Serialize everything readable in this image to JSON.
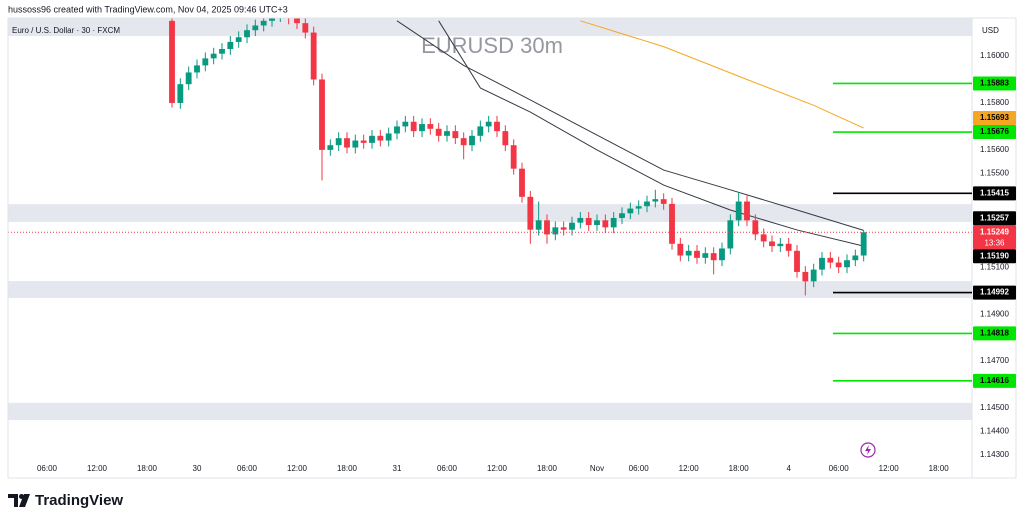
{
  "chart_data": {
    "type": "candlestick",
    "title": "EURUSD 30m",
    "credit": "hussoss96 created with TradingView.com, Nov 04, 2025 09:46 UTC+3",
    "symbol": "Euro / U.S. Dollar · 30 · FXCM",
    "currency": "USD",
    "brand": "TradingView",
    "up_color": "#089981",
    "down_color": "#f23645",
    "xlim": [
      1.32,
      117.0
    ],
    "ylim": [
      1.14202,
      1.16162
    ],
    "xticks": [
      {
        "value": 6,
        "label": "06:00"
      },
      {
        "value": 12,
        "label": "12:00"
      },
      {
        "value": 18,
        "label": "18:00"
      },
      {
        "value": 24,
        "label": "30"
      },
      {
        "value": 30,
        "label": "06:00"
      },
      {
        "value": 36,
        "label": "12:00"
      },
      {
        "value": 42,
        "label": "18:00"
      },
      {
        "value": 48,
        "label": "31"
      },
      {
        "value": 54,
        "label": "06:00"
      },
      {
        "value": 60,
        "label": "12:00"
      },
      {
        "value": 66,
        "label": "18:00"
      },
      {
        "value": 72,
        "label": "Nov"
      },
      {
        "value": 77,
        "label": "06:00"
      },
      {
        "value": 83,
        "label": "12:00"
      },
      {
        "value": 89,
        "label": "18:00"
      },
      {
        "value": 95,
        "label": "4"
      },
      {
        "value": 101,
        "label": "06:00"
      },
      {
        "value": 107,
        "label": "12:00"
      },
      {
        "value": 113,
        "label": "18:00"
      }
    ],
    "yticks": [
      {
        "value": 1.16,
        "label": "1.16000"
      },
      {
        "value": 1.158,
        "label": "1.15800"
      },
      {
        "value": 1.156,
        "label": "1.15600"
      },
      {
        "value": 1.155,
        "label": "1.15500"
      },
      {
        "value": 1.151,
        "label": "1.15100"
      },
      {
        "value": 1.149,
        "label": "1.14900"
      },
      {
        "value": 1.147,
        "label": "1.14700"
      },
      {
        "value": 1.145,
        "label": "1.14500"
      },
      {
        "value": 1.144,
        "label": "1.14400"
      },
      {
        "value": 1.143,
        "label": "1.14300"
      }
    ],
    "x": [
      21,
      22,
      23,
      24,
      25,
      26,
      27,
      28,
      29,
      30,
      31,
      32,
      33,
      34,
      35,
      36,
      37,
      38,
      39,
      40,
      41,
      42,
      43,
      44,
      45,
      46,
      47,
      48,
      49,
      50,
      51,
      52,
      53,
      54,
      55,
      56,
      57,
      58,
      59,
      60,
      61,
      62,
      63,
      64,
      65,
      66,
      67,
      68,
      69,
      70,
      71,
      72,
      73,
      74,
      75,
      76,
      77,
      78,
      79,
      80,
      81,
      82,
      83,
      84,
      85,
      86,
      87,
      88,
      89,
      90,
      91,
      92,
      93,
      94,
      95,
      96,
      97,
      98,
      99,
      100,
      101,
      102,
      103,
      104
    ],
    "open": [
      1.1615,
      1.158,
      1.1588,
      1.1593,
      1.1596,
      1.1599,
      1.1601,
      1.1603,
      1.1606,
      1.1608,
      1.1611,
      1.1613,
      1.1615,
      1.1617,
      1.1618,
      1.1616,
      1.1614,
      1.161,
      1.159,
      1.156,
      1.1562,
      1.1565,
      1.1561,
      1.1564,
      1.1563,
      1.1566,
      1.1564,
      1.1567,
      1.157,
      1.1572,
      1.1568,
      1.1571,
      1.1569,
      1.1566,
      1.1568,
      1.1565,
      1.1562,
      1.1566,
      1.157,
      1.1572,
      1.1568,
      1.1562,
      1.1552,
      1.154,
      1.1526,
      1.153,
      1.1524,
      1.1527,
      1.1526,
      1.1529,
      1.1531,
      1.1528,
      1.153,
      1.1527,
      1.1531,
      1.1533,
      1.1535,
      1.1536,
      1.1538,
      1.1539,
      1.1537,
      1.152,
      1.1515,
      1.1517,
      1.1514,
      1.1516,
      1.1513,
      1.1518,
      1.153,
      1.1538,
      1.153,
      1.1524,
      1.1521,
      1.1519,
      1.152,
      1.1517,
      1.1508,
      1.1504,
      1.1509,
      1.1514,
      1.1512,
      1.151,
      1.1513,
      1.1515
    ],
    "high": [
      1.162,
      1.15905,
      1.15955,
      1.15985,
      1.16015,
      1.16035,
      1.16055,
      1.16085,
      1.16105,
      1.16135,
      1.16155,
      1.16175,
      1.16195,
      1.16205,
      1.16205,
      1.16185,
      1.16165,
      1.16125,
      1.15925,
      1.15645,
      1.15675,
      1.15675,
      1.15665,
      1.15665,
      1.15685,
      1.15685,
      1.15695,
      1.15725,
      1.15745,
      1.15745,
      1.15735,
      1.15735,
      1.15715,
      1.15705,
      1.15705,
      1.15675,
      1.15685,
      1.15725,
      1.15745,
      1.15745,
      1.15705,
      1.15645,
      1.15545,
      1.15425,
      1.1538,
      1.15325,
      1.15295,
      1.15295,
      1.15315,
      1.15335,
      1.15335,
      1.15325,
      1.15325,
      1.15335,
      1.15355,
      1.15375,
      1.15385,
      1.15405,
      1.1543,
      1.15415,
      1.15395,
      1.15225,
      1.15195,
      1.15195,
      1.15185,
      1.15185,
      1.15205,
      1.15325,
      1.1542,
      1.15405,
      1.15325,
      1.15265,
      1.15235,
      1.15225,
      1.15225,
      1.15195,
      1.15105,
      1.15115,
      1.15165,
      1.15165,
      1.15145,
      1.15155,
      1.15175,
      1.15257
    ],
    "low": [
      1.1578,
      1.15775,
      1.15855,
      1.15905,
      1.15935,
      1.15965,
      1.15985,
      1.16005,
      1.16035,
      1.16055,
      1.16085,
      1.16105,
      1.16125,
      1.16145,
      1.16135,
      1.16115,
      1.16075,
      1.15875,
      1.1547,
      1.15575,
      1.15595,
      1.15585,
      1.15585,
      1.15605,
      1.15605,
      1.15615,
      1.15615,
      1.15645,
      1.15675,
      1.15655,
      1.15655,
      1.15665,
      1.15635,
      1.15635,
      1.15625,
      1.1556,
      1.15595,
      1.15635,
      1.15675,
      1.15655,
      1.15595,
      1.15495,
      1.15375,
      1.152,
      1.15235,
      1.152,
      1.15215,
      1.15235,
      1.15235,
      1.15265,
      1.15255,
      1.15255,
      1.15245,
      1.15245,
      1.15285,
      1.15305,
      1.15325,
      1.15335,
      1.15355,
      1.15345,
      1.15175,
      1.15125,
      1.15125,
      1.15115,
      1.15115,
      1.1507,
      1.15105,
      1.15155,
      1.15275,
      1.15275,
      1.15215,
      1.15185,
      1.15165,
      1.15165,
      1.15145,
      1.15055,
      1.1498,
      1.15015,
      1.15065,
      1.15095,
      1.15075,
      1.15075,
      1.15105,
      1.15125
    ],
    "close": [
      1.158,
      1.1588,
      1.1593,
      1.1596,
      1.1599,
      1.1601,
      1.1603,
      1.1606,
      1.1608,
      1.1611,
      1.1613,
      1.1615,
      1.1617,
      1.1618,
      1.1616,
      1.1614,
      1.161,
      1.159,
      1.156,
      1.1562,
      1.1565,
      1.1561,
      1.1564,
      1.1563,
      1.1566,
      1.1564,
      1.1567,
      1.157,
      1.1572,
      1.1568,
      1.1571,
      1.1569,
      1.1566,
      1.1568,
      1.1565,
      1.1562,
      1.1566,
      1.157,
      1.1572,
      1.1568,
      1.1562,
      1.1552,
      1.154,
      1.1526,
      1.153,
      1.1524,
      1.1527,
      1.1526,
      1.1529,
      1.1531,
      1.1528,
      1.153,
      1.1527,
      1.1531,
      1.1533,
      1.1535,
      1.1536,
      1.1538,
      1.1539,
      1.1537,
      1.152,
      1.1515,
      1.1517,
      1.1514,
      1.1516,
      1.1513,
      1.1518,
      1.153,
      1.1538,
      1.153,
      1.1524,
      1.1521,
      1.1519,
      1.152,
      1.1517,
      1.1508,
      1.1504,
      1.1509,
      1.1514,
      1.1512,
      1.151,
      1.1513,
      1.1515,
      1.15249
    ],
    "countdown": "13:36",
    "series": [
      {
        "color": "#f5a623",
        "x": [
          70,
          80,
          90,
          98,
          104
        ],
        "values": [
          1.1615,
          1.1604,
          1.159,
          1.1579,
          1.15693
        ],
        "end_label": "1.15693"
      },
      {
        "color": "#363a45",
        "x": [
          48,
          56,
          64,
          72,
          80,
          88,
          96,
          104
        ],
        "values": [
          1.1615,
          1.1596,
          1.15813,
          1.15663,
          1.15514,
          1.1543,
          1.15344,
          1.15257
        ],
        "end_label": "1.15257"
      },
      {
        "color": "#363a45",
        "x": [
          53,
          58,
          64,
          72,
          80,
          88,
          96,
          104
        ],
        "values": [
          1.1615,
          1.15864,
          1.15761,
          1.156,
          1.1545,
          1.15344,
          1.15259,
          1.1519
        ],
        "end_label": "1.15190"
      }
    ],
    "levels": [
      {
        "value": 1.15883,
        "label": "1.15883",
        "color": "#00e600"
      },
      {
        "value": 1.15676,
        "label": "1.15676",
        "color": "#00e600"
      },
      {
        "value": 1.15415,
        "label": "1.15415",
        "color": "#000000"
      },
      {
        "value": 1.14992,
        "label": "1.14992",
        "color": "#000000"
      },
      {
        "value": 1.14818,
        "label": "1.14818",
        "color": "#00e600"
      },
      {
        "value": 1.14616,
        "label": "1.14616",
        "color": "#00e600"
      }
    ],
    "zones": [
      [
        1.16085,
        1.16162
      ],
      [
        1.15293,
        1.15369
      ],
      [
        1.14969,
        1.15041
      ],
      [
        1.14449,
        1.14522
      ]
    ]
  }
}
